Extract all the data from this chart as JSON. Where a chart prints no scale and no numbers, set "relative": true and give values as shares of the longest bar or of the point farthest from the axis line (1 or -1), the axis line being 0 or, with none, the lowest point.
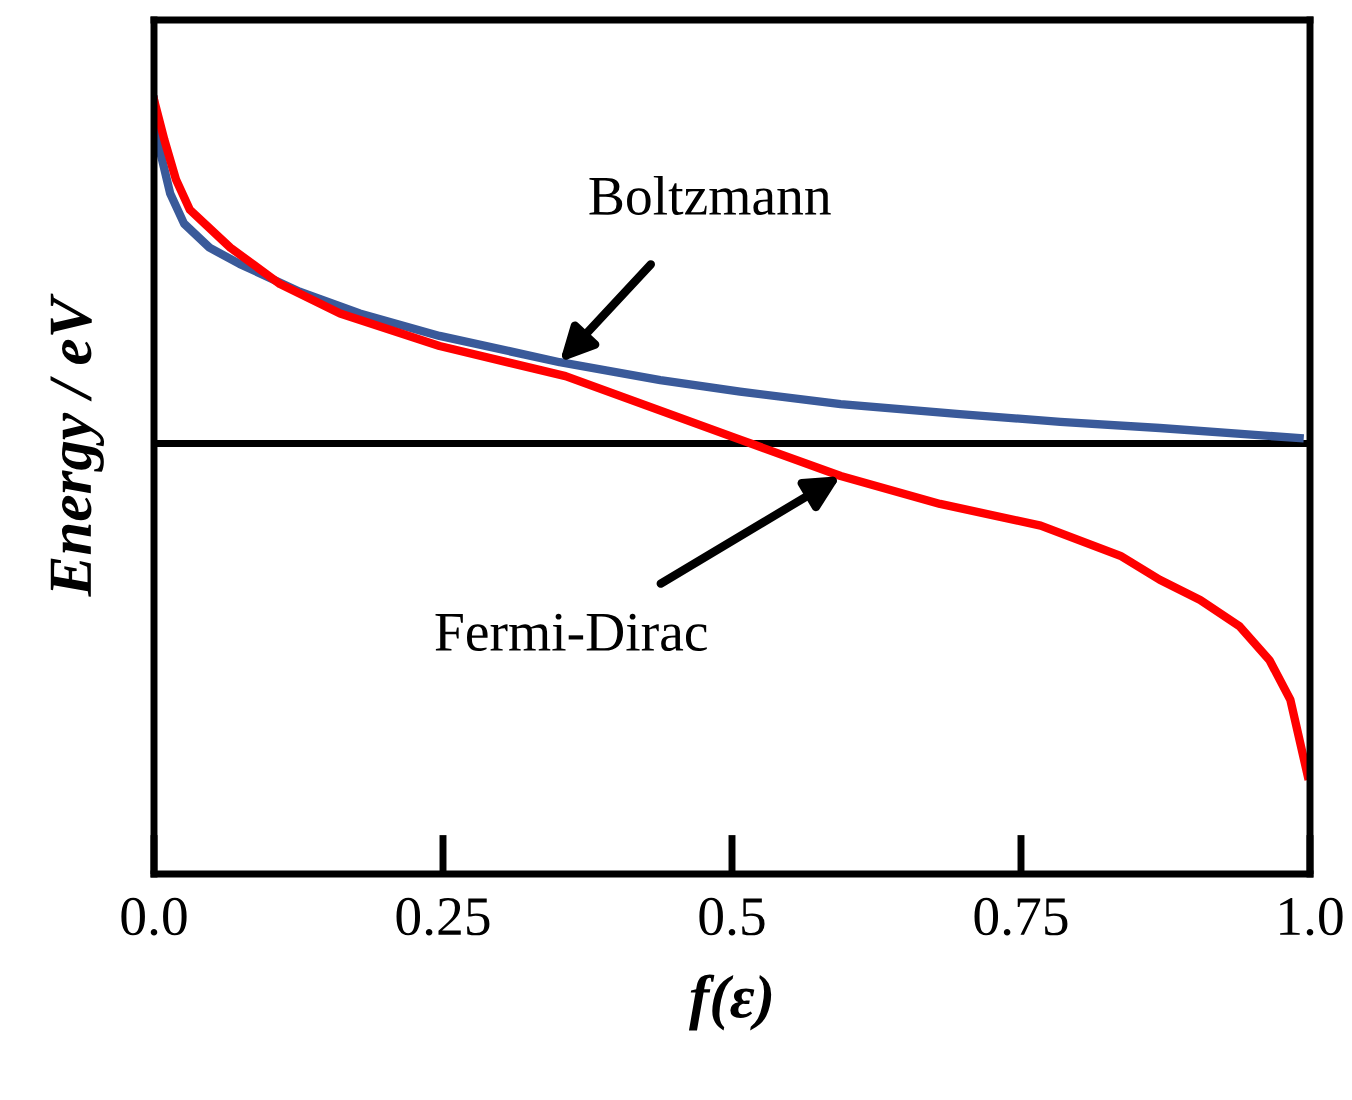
{
  "chart_data": {
    "type": "line",
    "relative": true,
    "xlabel": "f(ε)",
    "ylabel": "Energy / eV",
    "xlim": [
      0,
      1
    ],
    "xticks": [
      {
        "value": 0,
        "label": "0.0"
      },
      0.25,
      0.5,
      0.75,
      {
        "value": 1,
        "label": "1.0"
      }
    ],
    "grid": false,
    "legend": false,
    "marker": "none",
    "line_style": "solid",
    "ref_lines": [
      {
        "axis": "y",
        "value": 0.556,
        "color": "#000000",
        "line_style": "solid"
      }
    ],
    "annotations": [
      {
        "text": "Boltzmann",
        "x": 0.351,
        "y": 0.661
      },
      {
        "text": "Fermi-Dirac",
        "x": 0.594,
        "y": 0.514
      }
    ],
    "series": [
      {
        "color": "#3a5a9a",
        "x": [
          0,
          0.005,
          0.014,
          0.026,
          0.048,
          0.074,
          0.126,
          0.178,
          0.247,
          0.351,
          0.438,
          0.507,
          0.594,
          0.697,
          0.784,
          0.87,
          0.991
        ],
        "values": [
          1.0,
          0.935,
          0.879,
          0.84,
          0.809,
          0.788,
          0.752,
          0.724,
          0.695,
          0.661,
          0.638,
          0.623,
          0.607,
          0.594,
          0.584,
          0.576,
          0.563
        ]
      },
      {
        "color": "#ff0000",
        "x": [
          0,
          0.009,
          0.019,
          0.031,
          0.066,
          0.109,
          0.161,
          0.247,
          0.356,
          0.507,
          0.594,
          0.68,
          0.767,
          0.836,
          0.87,
          0.905,
          0.939,
          0.965,
          0.983,
          0.998
        ],
        "values": [
          1.0,
          0.948,
          0.897,
          0.858,
          0.809,
          0.762,
          0.724,
          0.682,
          0.643,
          0.561,
          0.514,
          0.478,
          0.45,
          0.411,
          0.38,
          0.354,
          0.32,
          0.276,
          0.225,
          0.127
        ]
      }
    ]
  }
}
